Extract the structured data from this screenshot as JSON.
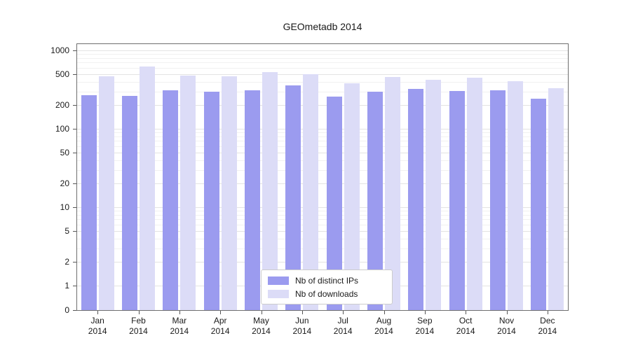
{
  "chart_data": {
    "type": "bar",
    "title": "GEOmetadb 2014",
    "year": "2014",
    "categories": [
      "Jan",
      "Feb",
      "Mar",
      "Apr",
      "May",
      "Jun",
      "Jul",
      "Aug",
      "Sep",
      "Oct",
      "Nov",
      "Dec"
    ],
    "series": [
      {
        "name": "Nb of distinct IPs",
        "color": "#9b9bef",
        "values": [
          270,
          265,
          310,
          300,
          310,
          360,
          260,
          300,
          320,
          305,
          310,
          240
        ]
      },
      {
        "name": "Nb of downloads",
        "color": "#dcdcf7",
        "values": [
          470,
          620,
          480,
          470,
          530,
          495,
          380,
          455,
          420,
          445,
          405,
          330
        ]
      }
    ],
    "xlabel": "",
    "ylabel": "",
    "yscale": "symlog",
    "yticks": [
      0,
      1,
      2,
      5,
      10,
      20,
      50,
      100,
      200,
      500,
      1000
    ],
    "ylim": [
      0,
      1300
    ],
    "grid": "on",
    "legend_position": "lower center"
  }
}
